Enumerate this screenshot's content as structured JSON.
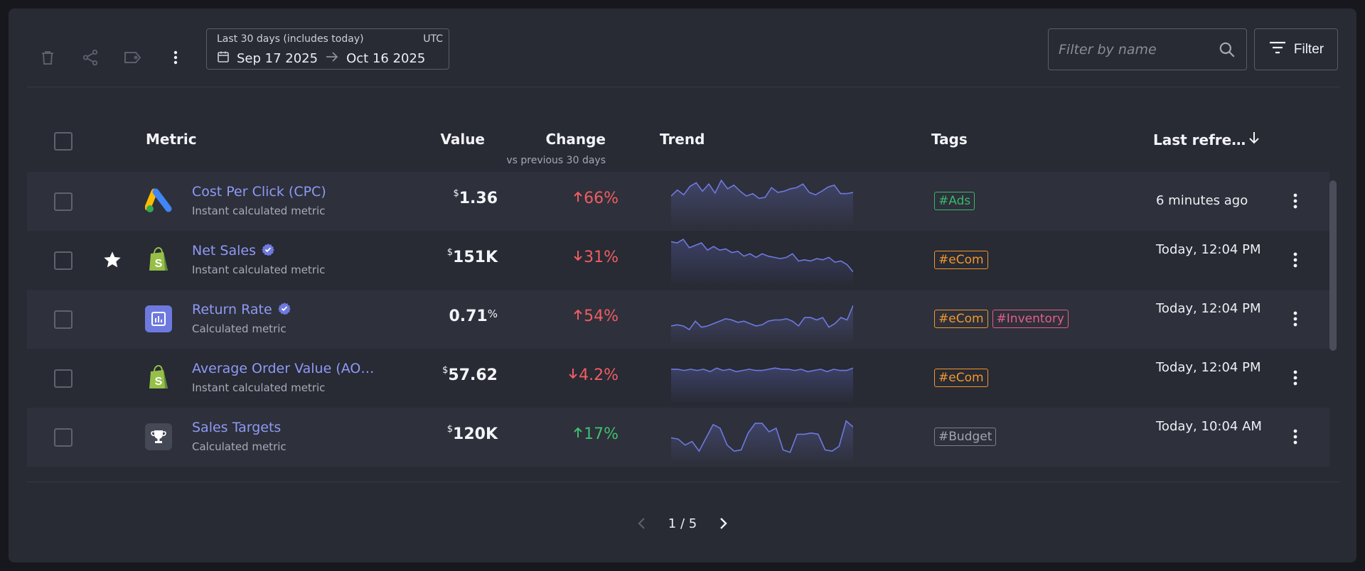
{
  "toolbar": {
    "icons": [
      "trash-icon",
      "share-icon",
      "tag-icon",
      "more-vert-icon"
    ],
    "date_range": {
      "caption": "Last 30 days (includes today)",
      "timezone": "UTC",
      "start": "Sep 17 2025",
      "end": "Oct 16 2025"
    },
    "search_placeholder": "Filter by name",
    "filter_label": "Filter"
  },
  "table": {
    "headers": {
      "metric": "Metric",
      "value": "Value",
      "change": "Change",
      "change_sub": "vs previous 30 days",
      "trend": "Trend",
      "tags": "Tags",
      "last_refreshed": "Last refre…"
    },
    "rows": [
      {
        "starred": false,
        "logo": "google-ads-logo",
        "name": "Cost Per Click (CPC)",
        "verified": false,
        "desc": "Instant calculated metric",
        "value_prefix": "$",
        "value_main": "1.36",
        "value_suffix": "",
        "change_dir": "up",
        "change_value": "66%",
        "change_color": "#ef5d62",
        "trend": [
          40,
          50,
          42,
          56,
          62,
          48,
          60,
          45,
          66,
          52,
          58,
          48,
          40,
          44,
          36,
          38,
          54,
          46,
          48,
          52,
          54,
          60,
          46,
          42,
          48,
          55,
          58,
          44,
          44,
          46
        ],
        "tags": [
          {
            "label": "#Ads",
            "color": "green"
          }
        ],
        "refreshed": "6 minutes ago"
      },
      {
        "starred": true,
        "logo": "shopify-logo",
        "name": "Net Sales",
        "verified": true,
        "desc": "Instant calculated metric",
        "value_prefix": "$",
        "value_main": "151K",
        "value_suffix": "",
        "change_dir": "down",
        "change_value": "31%",
        "change_color": "#ef5d62",
        "trend": [
          62,
          60,
          66,
          52,
          56,
          60,
          48,
          54,
          48,
          50,
          44,
          46,
          38,
          42,
          36,
          42,
          38,
          36,
          34,
          36,
          42,
          30,
          32,
          30,
          34,
          32,
          36,
          28,
          30,
          24,
          12
        ],
        "tags": [
          {
            "label": "#eCom",
            "color": "orange"
          }
        ],
        "refreshed": "Today, 12:04 PM"
      },
      {
        "starred": false,
        "logo": "report-chart-logo",
        "name": "Return Rate",
        "verified": true,
        "desc": "Calculated metric",
        "value_prefix": "",
        "value_main": "0.71",
        "value_suffix": "%",
        "change_dir": "up",
        "change_value": "54%",
        "change_color": "#ef5d62",
        "trend": [
          20,
          22,
          20,
          14,
          28,
          18,
          20,
          24,
          28,
          32,
          30,
          26,
          28,
          24,
          20,
          22,
          28,
          30,
          30,
          32,
          28,
          20,
          34,
          34,
          30,
          34,
          18,
          24,
          34,
          30,
          54
        ],
        "tags": [
          {
            "label": "#eCom",
            "color": "orange"
          },
          {
            "label": "#Inventory",
            "color": "pink"
          }
        ],
        "refreshed": "Today, 12:04 PM"
      },
      {
        "starred": false,
        "logo": "shopify-logo",
        "name": "Average Order Value (AO…",
        "verified": false,
        "desc": "Instant calculated metric",
        "value_prefix": "$",
        "value_main": "57.62",
        "value_suffix": "",
        "change_dir": "down",
        "change_value": "4.2%",
        "change_color": "#ef5d62",
        "trend": [
          46,
          46,
          44,
          46,
          44,
          46,
          42,
          48,
          44,
          46,
          42,
          44,
          46,
          44,
          44,
          46,
          48,
          46,
          46,
          44,
          46,
          42,
          44,
          46,
          42,
          46,
          44,
          44,
          48
        ],
        "tags": [
          {
            "label": "#eCom",
            "color": "orange"
          }
        ],
        "refreshed": "Today, 12:04 PM"
      },
      {
        "starred": false,
        "logo": "trophy-logo",
        "name": "Sales Targets",
        "verified": false,
        "desc": "Calculated metric",
        "value_prefix": "$",
        "value_main": "120K",
        "value_suffix": "",
        "change_dir": "up",
        "change_value": "17%",
        "change_color": "#3fbf6d",
        "trend": [
          30,
          28,
          18,
          24,
          8,
          30,
          52,
          46,
          18,
          8,
          10,
          38,
          54,
          54,
          40,
          46,
          10,
          6,
          36,
          36,
          38,
          36,
          10,
          8,
          16,
          58,
          48
        ],
        "tags": [
          {
            "label": "#Budget",
            "color": "gray"
          }
        ],
        "refreshed": "Today, 10:04 AM"
      }
    ]
  },
  "pagination": {
    "label": "1 / 5"
  },
  "colors": {
    "accent": "#6e79e0",
    "link": "#8e9af5",
    "negative": "#ef5d62",
    "positive": "#3fbf6d"
  }
}
